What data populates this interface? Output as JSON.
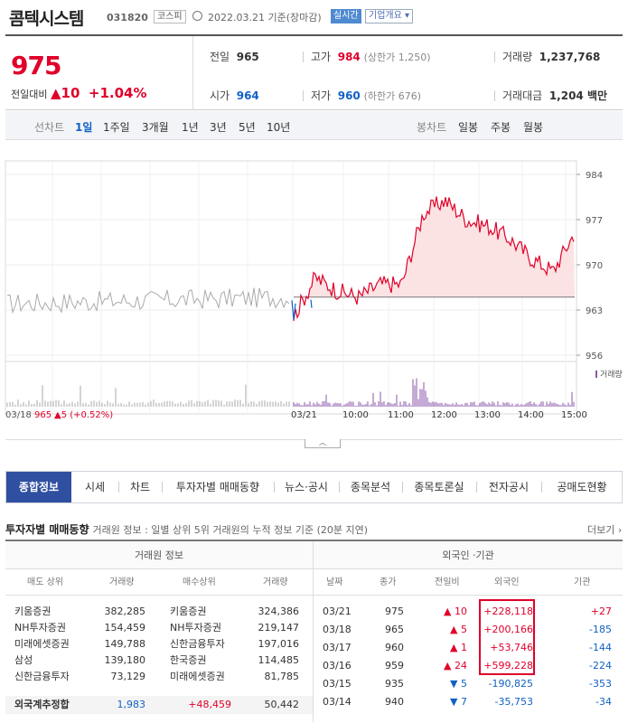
{
  "header": {
    "name": "콤텍시스템",
    "code": "031820",
    "market": "코스피",
    "date": "2022.03.21 기준(장마감)",
    "live": "실시간",
    "corp": "기업개요 ▾"
  },
  "price": {
    "current": "975",
    "diff_label": "전일대비",
    "diff_arrow": "▲",
    "diff": "10",
    "rate": "+1.04%"
  },
  "quote": {
    "prev_label": "전일",
    "prev": "965",
    "high_label": "고가",
    "high": "984",
    "upper": "(상한가 1,250)",
    "vol_label": "거래량",
    "vol": "1,237,768",
    "open_label": "시가",
    "open": "964",
    "low_label": "저가",
    "low": "960",
    "lower": "(하한가 676)",
    "amt_label": "거래대금",
    "amt": "1,204 백만"
  },
  "period_tabs": {
    "line_label": "선차트",
    "items": [
      "1일",
      "1주일",
      "3개월",
      "1년",
      "3년",
      "5년",
      "10년"
    ],
    "candle_label": "봉차트",
    "candle_items": [
      "일봉",
      "주봉",
      "월봉"
    ]
  },
  "chart": {
    "y_ticks": [
      "984",
      "977",
      "970",
      "963",
      "956"
    ],
    "vol_label": "거래량",
    "prev_info_date": "03/18",
    "prev_info_price": "965",
    "prev_info_change": "▲5 (+0.52%)",
    "x_ticks": [
      "03/21",
      "10:00",
      "11:00",
      "12:00",
      "13:00",
      "14:00",
      "15:00"
    ]
  },
  "chart_data": {
    "type": "line",
    "xlabel": "",
    "ylabel": "",
    "ylim": [
      956,
      984
    ],
    "prev_close": 965,
    "x": [
      "03/18 09:00",
      "03/18 15:30",
      "03/21 09:00",
      "03/21 09:30",
      "03/21 10:00",
      "03/21 10:30",
      "03/21 11:00",
      "03/21 11:30",
      "03/21 12:00",
      "03/21 12:30",
      "03/21 13:00",
      "03/21 13:30",
      "03/21 14:00",
      "03/21 14:30",
      "03/21 15:00",
      "03/21 15:30"
    ],
    "series": [
      {
        "values": [
          964,
          965,
          962,
          968,
          966,
          965,
          967,
          967,
          978,
          980,
          977,
          976,
          974,
          971,
          969,
          975
        ]
      }
    ]
  },
  "nav_tabs": [
    "종합정보",
    "시세",
    "차트",
    "투자자별 매매동향",
    "뉴스·공시",
    "종목분석",
    "종목토론실",
    "전자공시",
    "공매도현황"
  ],
  "section": {
    "title": "투자자별 매매동향",
    "desc": "거래원 정보 : 일별 상위 5위 거래원의 누적 정보 기준 (20분 지연)",
    "more": "더보기 ›"
  },
  "broker": {
    "group": "거래원 정보",
    "headers": [
      "매도 상위",
      "거래량",
      "매수상위",
      "거래량"
    ],
    "rows": [
      [
        "키움증권",
        "382,285",
        "키움증권",
        "324,386"
      ],
      [
        "NH투자증권",
        "154,459",
        "NH투자증권",
        "219,147"
      ],
      [
        "미래에셋증권",
        "149,788",
        "신한금융투자",
        "197,016"
      ],
      [
        "삼성",
        "139,180",
        "한국증권",
        "114,485"
      ],
      [
        "신한금융투자",
        "73,129",
        "미래에셋증권",
        "81,785"
      ]
    ],
    "foreign_sum": [
      "외국계추정합",
      "1,983",
      "+48,459",
      "50,442"
    ]
  },
  "investor": {
    "group": "외국인 ·기관",
    "headers": [
      "날짜",
      "종가",
      "전일비",
      "외국인",
      "기관"
    ],
    "rows": [
      [
        "03/21",
        "975",
        "▲ 10",
        "+228,118",
        "+27"
      ],
      [
        "03/18",
        "965",
        "▲ 5",
        "+200,166",
        "-185"
      ],
      [
        "03/17",
        "960",
        "▲ 1",
        "+53,746",
        "-144"
      ],
      [
        "03/16",
        "959",
        "▲ 24",
        "+599,228",
        "-224"
      ],
      [
        "03/15",
        "935",
        "▼ 5",
        "-190,825",
        "-353"
      ],
      [
        "03/14",
        "940",
        "▼ 7",
        "-35,753",
        "-34"
      ]
    ]
  }
}
